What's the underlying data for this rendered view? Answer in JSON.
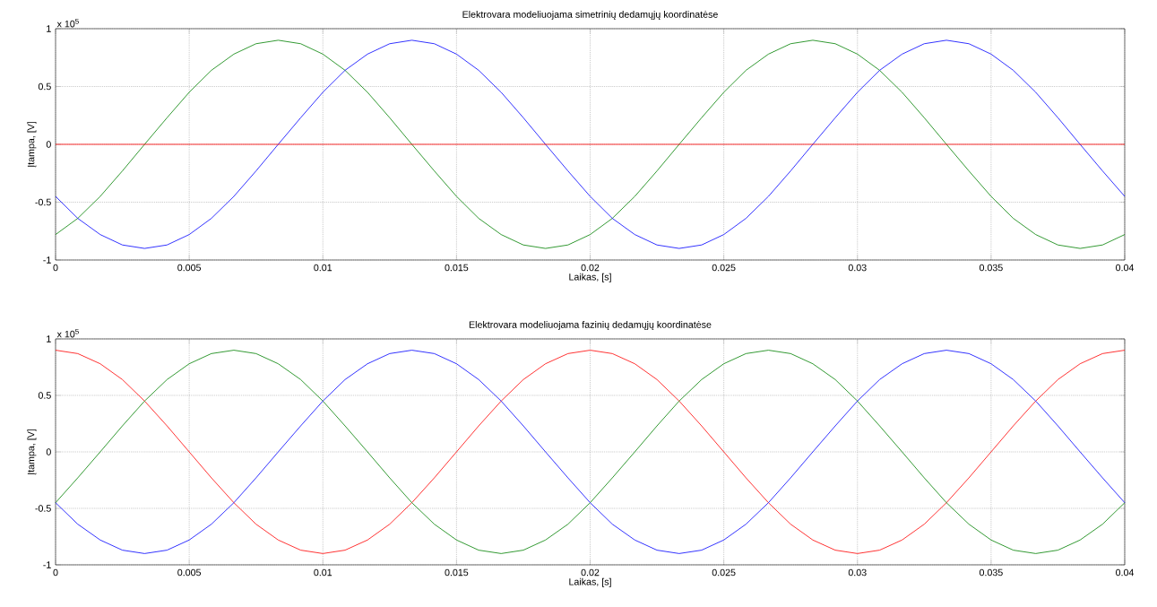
{
  "chart_data": [
    {
      "type": "line",
      "title": "Elektrovara modeliuojama simetrinių dedamųjų koordinatėse",
      "xlabel": "Laikas, [s]",
      "ylabel": "Įtampa, [V]",
      "annotations": [
        "x 10$^{5}$"
      ],
      "grid": true,
      "marker": "none",
      "line_style": "solid",
      "xlim": [
        0,
        0.04
      ],
      "ylim": [
        -1,
        1
      ],
      "xticks": [
        0,
        0.005,
        0.01,
        0.015,
        0.02,
        0.025,
        0.03,
        0.035,
        0.04
      ],
      "yticks": [
        -1,
        -0.5,
        0,
        0.5,
        1
      ],
      "x": [
        0,
        0.00083,
        0.00167,
        0.0025,
        0.00333,
        0.00417,
        0.005,
        0.00583,
        0.00667,
        0.0075,
        0.00833,
        0.00917,
        0.01,
        0.01083,
        0.01167,
        0.0125,
        0.01333,
        0.01417,
        0.015,
        0.01583,
        0.01667,
        0.0175,
        0.01833,
        0.01917,
        0.02,
        0.02083,
        0.02167,
        0.0225,
        0.02333,
        0.02417,
        0.025,
        0.02583,
        0.02667,
        0.0275,
        0.02833,
        0.02917,
        0.03,
        0.03083,
        0.03167,
        0.0325,
        0.03333,
        0.03417,
        0.035,
        0.03583,
        0.03667,
        0.0375,
        0.03833,
        0.03917,
        0.04
      ],
      "series": [
        {
          "color": "#008000",
          "values": [
            -0.78,
            -0.64,
            -0.45,
            -0.23,
            0,
            0.23,
            0.45,
            0.64,
            0.78,
            0.87,
            0.9,
            0.87,
            0.78,
            0.64,
            0.45,
            0.23,
            0,
            -0.23,
            -0.45,
            -0.64,
            -0.78,
            -0.87,
            -0.9,
            -0.87,
            -0.78,
            -0.64,
            -0.45,
            -0.23,
            0,
            0.23,
            0.45,
            0.64,
            0.78,
            0.87,
            0.9,
            0.87,
            0.78,
            0.64,
            0.45,
            0.23,
            0,
            -0.23,
            -0.45,
            -0.64,
            -0.78,
            -0.87,
            -0.9,
            -0.87,
            -0.78
          ]
        },
        {
          "color": "#0000ff",
          "values": [
            -0.45,
            -0.64,
            -0.78,
            -0.87,
            -0.9,
            -0.87,
            -0.78,
            -0.64,
            -0.45,
            -0.23,
            0,
            0.23,
            0.45,
            0.64,
            0.78,
            0.87,
            0.9,
            0.87,
            0.78,
            0.64,
            0.45,
            0.23,
            0,
            -0.23,
            -0.45,
            -0.64,
            -0.78,
            -0.87,
            -0.9,
            -0.87,
            -0.78,
            -0.64,
            -0.45,
            -0.23,
            0,
            0.23,
            0.45,
            0.64,
            0.78,
            0.87,
            0.9,
            0.87,
            0.78,
            0.64,
            0.45,
            0.23,
            0,
            -0.23,
            -0.45
          ]
        },
        {
          "color": "#ff0000",
          "values": [
            0,
            0,
            0,
            0,
            0,
            0,
            0,
            0,
            0,
            0,
            0,
            0,
            0,
            0,
            0,
            0,
            0,
            0,
            0,
            0,
            0,
            0,
            0,
            0,
            0,
            0,
            0,
            0,
            0,
            0,
            0,
            0,
            0,
            0,
            0,
            0,
            0,
            0,
            0,
            0,
            0,
            0,
            0,
            0,
            0,
            0,
            0,
            0,
            0
          ]
        }
      ]
    },
    {
      "type": "line",
      "title": "Elektrovara modeliuojama fazinių dedamųjų koordinatėse",
      "xlabel": "Laikas, [s]",
      "ylabel": "Įtampa, [V]",
      "annotations": [
        "x 10$^{5}$"
      ],
      "grid": true,
      "marker": "none",
      "line_style": "solid",
      "xlim": [
        0,
        0.04
      ],
      "ylim": [
        -1,
        1
      ],
      "xticks": [
        0,
        0.005,
        0.01,
        0.015,
        0.02,
        0.025,
        0.03,
        0.035,
        0.04
      ],
      "yticks": [
        -1,
        -0.5,
        0,
        0.5,
        1
      ],
      "x": [
        0,
        0.00083,
        0.00167,
        0.0025,
        0.00333,
        0.00417,
        0.005,
        0.00583,
        0.00667,
        0.0075,
        0.00833,
        0.00917,
        0.01,
        0.01083,
        0.01167,
        0.0125,
        0.01333,
        0.01417,
        0.015,
        0.01583,
        0.01667,
        0.0175,
        0.01833,
        0.01917,
        0.02,
        0.02083,
        0.02167,
        0.0225,
        0.02333,
        0.02417,
        0.025,
        0.02583,
        0.02667,
        0.0275,
        0.02833,
        0.02917,
        0.03,
        0.03083,
        0.03167,
        0.0325,
        0.03333,
        0.03417,
        0.035,
        0.03583,
        0.03667,
        0.0375,
        0.03833,
        0.03917,
        0.04
      ],
      "series": [
        {
          "color": "#ff0000",
          "values": [
            0.9,
            0.87,
            0.78,
            0.64,
            0.45,
            0.23,
            0,
            -0.23,
            -0.45,
            -0.64,
            -0.78,
            -0.87,
            -0.9,
            -0.87,
            -0.78,
            -0.64,
            -0.45,
            -0.23,
            0,
            0.23,
            0.45,
            0.64,
            0.78,
            0.87,
            0.9,
            0.87,
            0.78,
            0.64,
            0.45,
            0.23,
            0,
            -0.23,
            -0.45,
            -0.64,
            -0.78,
            -0.87,
            -0.9,
            -0.87,
            -0.78,
            -0.64,
            -0.45,
            -0.23,
            0,
            0.23,
            0.45,
            0.64,
            0.78,
            0.87,
            0.9
          ]
        },
        {
          "color": "#008000",
          "values": [
            -0.45,
            -0.23,
            0,
            0.23,
            0.45,
            0.64,
            0.78,
            0.87,
            0.9,
            0.87,
            0.78,
            0.64,
            0.45,
            0.23,
            0,
            -0.23,
            -0.45,
            -0.64,
            -0.78,
            -0.87,
            -0.9,
            -0.87,
            -0.78,
            -0.64,
            -0.45,
            -0.23,
            0,
            0.23,
            0.45,
            0.64,
            0.78,
            0.87,
            0.9,
            0.87,
            0.78,
            0.64,
            0.45,
            0.23,
            0,
            -0.23,
            -0.45,
            -0.64,
            -0.78,
            -0.87,
            -0.9,
            -0.87,
            -0.78,
            -0.64,
            -0.45
          ]
        },
        {
          "color": "#0000ff",
          "values": [
            -0.45,
            -0.64,
            -0.78,
            -0.87,
            -0.9,
            -0.87,
            -0.78,
            -0.64,
            -0.45,
            -0.23,
            0,
            0.23,
            0.45,
            0.64,
            0.78,
            0.87,
            0.9,
            0.87,
            0.78,
            0.64,
            0.45,
            0.23,
            0,
            -0.23,
            -0.45,
            -0.64,
            -0.78,
            -0.87,
            -0.9,
            -0.87,
            -0.78,
            -0.64,
            -0.45,
            -0.23,
            0,
            0.23,
            0.45,
            0.64,
            0.78,
            0.87,
            0.9,
            0.87,
            0.78,
            0.64,
            0.45,
            0.23,
            0,
            -0.23,
            -0.45
          ]
        }
      ]
    }
  ]
}
